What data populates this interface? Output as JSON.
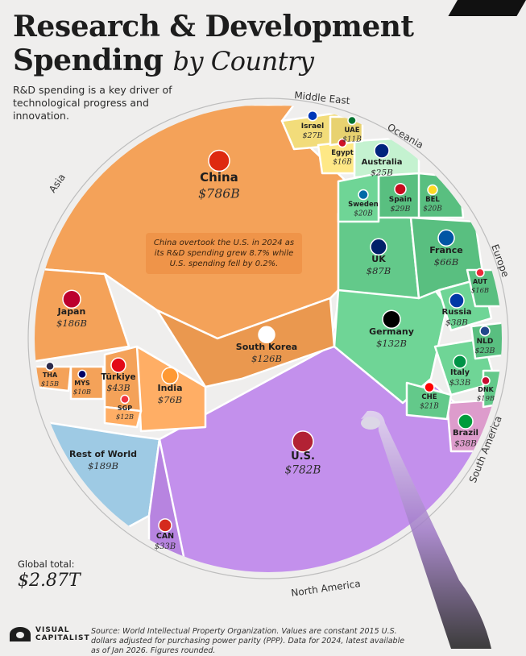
{
  "header": {
    "title_line1": "Research & Development",
    "title_line2": "Spending",
    "title_suffix": "by Country",
    "subtitle": "R&D spending is a key driver of technological progress and innovation."
  },
  "callout": "China overtook the U.S. in 2024 as its R&D spending grew 8.7% while U.S. spending fell by 0.2%.",
  "global_total": {
    "label": "Global total:",
    "value": "$2.87T"
  },
  "brand": {
    "line1": "VISUAL",
    "line2": "CAPITALIST"
  },
  "source": "Source: World Intellectual Property Organization. Values are constant 2015 U.S. dollars adjusted for purchasing power parity (PPP). Data for 2024, latest available as of Jan 2026. Figures rounded.",
  "colors": {
    "asia": "#f4a259",
    "north_america": "#b784e0",
    "europe": "#63c98a",
    "middle_east": "#f2dc7a",
    "oceania": "#b8e6c4",
    "south_america": "#e7a6d6",
    "rest_of_world": "#a8d4ee"
  },
  "chart_data": {
    "type": "voronoi-treemap",
    "unit": "USD billions",
    "total": "$2.87T",
    "regions": [
      "Asia",
      "Middle East",
      "Oceania",
      "Europe",
      "South America",
      "North America"
    ],
    "cells": [
      {
        "name": "China",
        "value": 786,
        "label": "$786B",
        "region": "Asia"
      },
      {
        "name": "U.S.",
        "value": 782,
        "label": "$782B",
        "region": "North America"
      },
      {
        "name": "Rest of World",
        "value": 189,
        "label": "$189B",
        "region": "Rest of World"
      },
      {
        "name": "Japan",
        "value": 186,
        "label": "$186B",
        "region": "Asia"
      },
      {
        "name": "Germany",
        "value": 132,
        "label": "$132B",
        "region": "Europe"
      },
      {
        "name": "South Korea",
        "value": 126,
        "label": "$126B",
        "region": "Asia"
      },
      {
        "name": "UK",
        "value": 87,
        "label": "$87B",
        "region": "Europe"
      },
      {
        "name": "India",
        "value": 76,
        "label": "$76B",
        "region": "Asia"
      },
      {
        "name": "France",
        "value": 66,
        "label": "$66B",
        "region": "Europe"
      },
      {
        "name": "Türkiye",
        "value": 43,
        "label": "$43B",
        "region": "Asia"
      },
      {
        "name": "Russia",
        "value": 38,
        "label": "$38B",
        "region": "Europe"
      },
      {
        "name": "Brazil",
        "value": 38,
        "label": "$38B",
        "region": "South America"
      },
      {
        "name": "CAN",
        "value": 33,
        "label": "$33B",
        "region": "North America"
      },
      {
        "name": "Italy",
        "value": 33,
        "label": "$33B",
        "region": "Europe"
      },
      {
        "name": "Spain",
        "value": 29,
        "label": "$29B",
        "region": "Europe"
      },
      {
        "name": "Israel",
        "value": 27,
        "label": "$27B",
        "region": "Middle East"
      },
      {
        "name": "Australia",
        "value": 25,
        "label": "$25B",
        "region": "Oceania"
      },
      {
        "name": "NLD",
        "value": 23,
        "label": "$23B",
        "region": "Europe"
      },
      {
        "name": "CHE",
        "value": 21,
        "label": "$21B",
        "region": "Europe"
      },
      {
        "name": "Sweden",
        "value": 20,
        "label": "$20B",
        "region": "Europe"
      },
      {
        "name": "BEL",
        "value": 20,
        "label": "$20B",
        "region": "Europe"
      },
      {
        "name": "DNK",
        "value": 19,
        "label": "$19B",
        "region": "Europe"
      },
      {
        "name": "Egypt",
        "value": 16,
        "label": "$16B",
        "region": "Middle East"
      },
      {
        "name": "AUT",
        "value": 16,
        "label": "$16B",
        "region": "Europe"
      },
      {
        "name": "THA",
        "value": 15,
        "label": "$15B",
        "region": "Asia"
      },
      {
        "name": "SGP",
        "value": 12,
        "label": "$12B",
        "region": "Asia"
      },
      {
        "name": "UAE",
        "value": 11,
        "label": "$11B",
        "region": "Middle East"
      },
      {
        "name": "MYS",
        "value": 10,
        "label": "$10B",
        "region": "Asia"
      }
    ]
  }
}
